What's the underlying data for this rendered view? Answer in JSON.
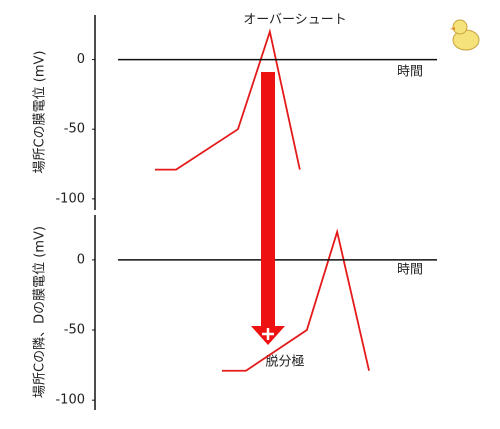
{
  "chart_data": [
    {
      "type": "line",
      "annotation": "オーバーシュート",
      "xlabel": "時間",
      "ylabel": "場所Cの膜電位 (mV)",
      "x": [
        11.6,
        18.2,
        37.6,
        47.6,
        57
      ],
      "series": [
        {
          "color": "#e41a1a",
          "values": [
            -79,
            -79,
            -50,
            20,
            -79
          ]
        }
      ],
      "xlim": [
        0,
        100
      ],
      "ylim": [
        -108,
        32
      ],
      "yticks": [
        0,
        -50,
        -100
      ]
    },
    {
      "type": "line",
      "annotation": "脱分極",
      "xlabel": "時間",
      "ylabel": "場所Cの隣、Dの膜電位 (mV)",
      "x": [
        32.6,
        40.1,
        59.2,
        68.7,
        78.7
      ],
      "series": [
        {
          "color": "#e41a1a",
          "values": [
            -79,
            -79,
            -50,
            20,
            -79
          ]
        }
      ],
      "xlim": [
        0,
        100
      ],
      "ylim": [
        -107,
        32
      ],
      "yticks": [
        0,
        -50,
        -100
      ]
    }
  ]
}
